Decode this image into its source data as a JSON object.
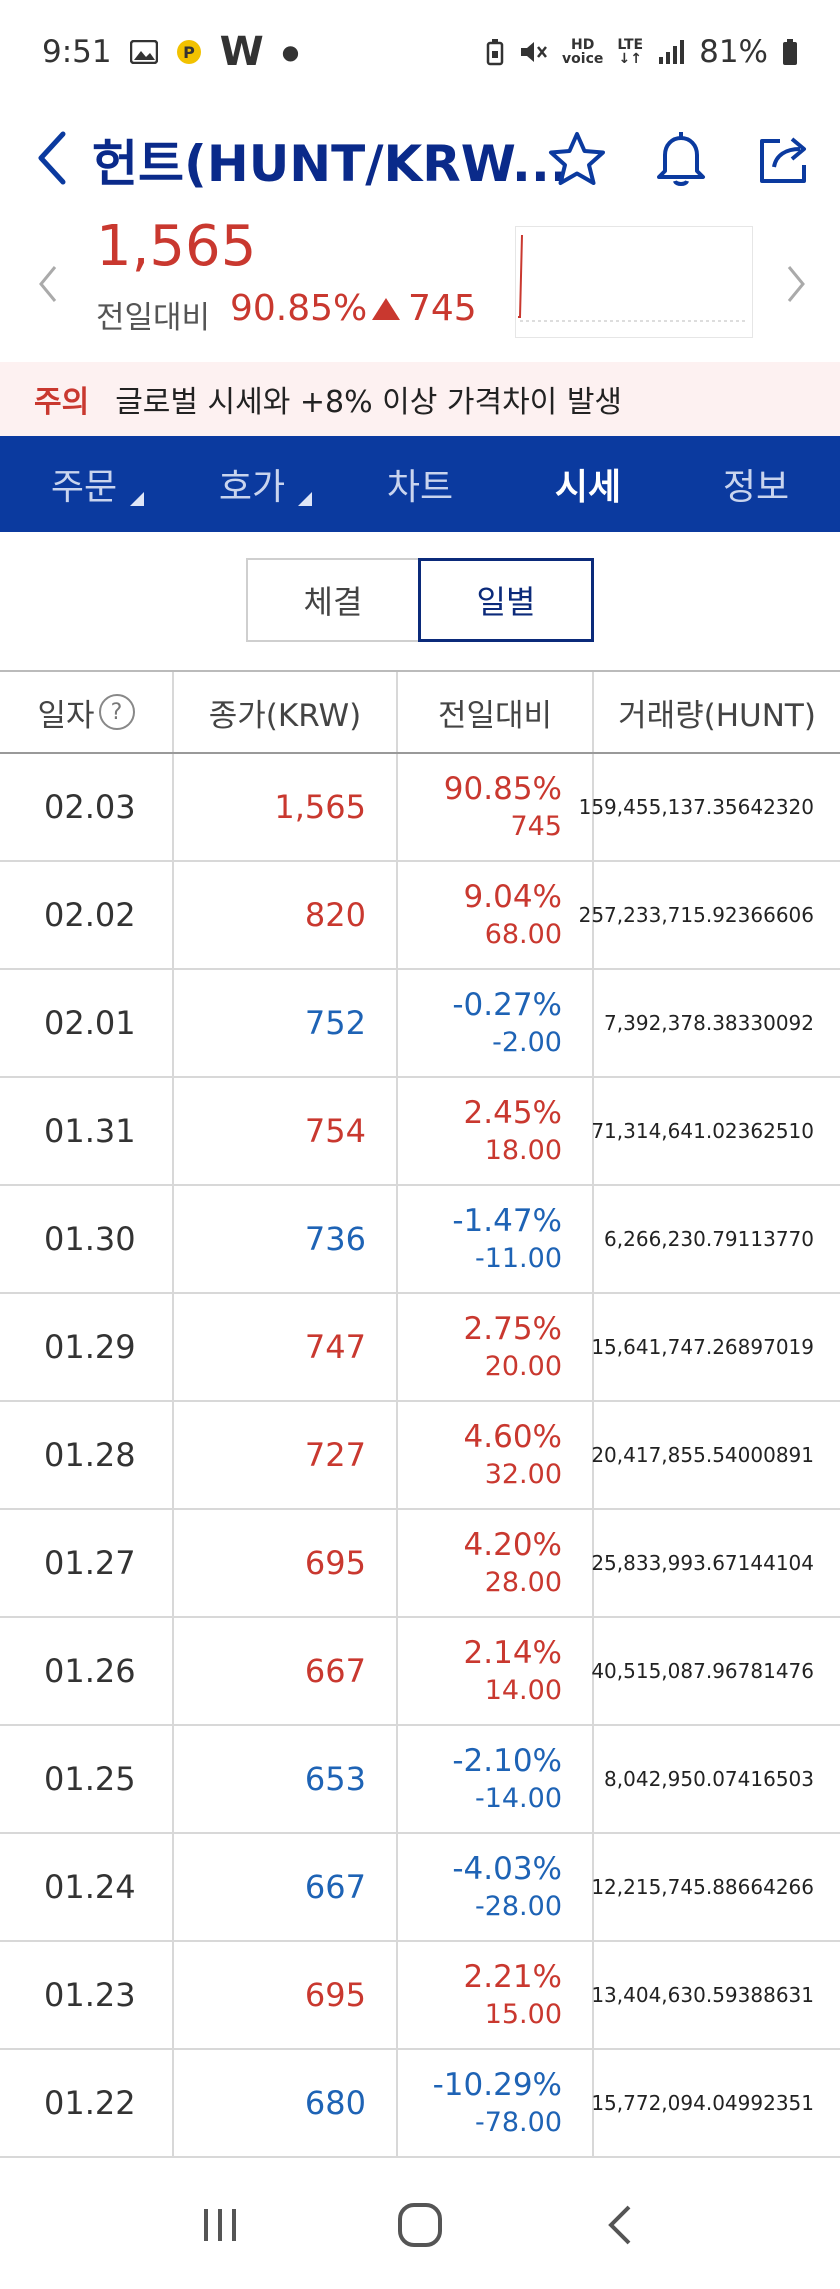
{
  "status": {
    "time": "9:51",
    "battery": "81%"
  },
  "header": {
    "title": "헌트(HUNT/KRW..."
  },
  "summary": {
    "price": "1,565",
    "prev_label": "전일대비",
    "change_rate": "90.85%",
    "change_abs": "745"
  },
  "warning": {
    "label": "주의",
    "text": "글로벌 시세와 +8% 이상 가격차이 발생"
  },
  "tabs": [
    {
      "label": "주문",
      "active": false
    },
    {
      "label": "호가",
      "active": false
    },
    {
      "label": "차트",
      "active": false
    },
    {
      "label": "시세",
      "active": true
    },
    {
      "label": "정보",
      "active": false
    }
  ],
  "segment": {
    "trades": "체결",
    "daily": "일별"
  },
  "table": {
    "headers": [
      "일자",
      "종가(KRW)",
      "전일대비",
      "거래량(HUNT)"
    ],
    "rows": [
      {
        "date": "02.03",
        "close": "1,565",
        "rate": "90.85%",
        "abs": "745",
        "volume": "159,455,137.35642320",
        "dir": "up"
      },
      {
        "date": "02.02",
        "close": "820",
        "rate": "9.04%",
        "abs": "68.00",
        "volume": "257,233,715.92366606",
        "dir": "up"
      },
      {
        "date": "02.01",
        "close": "752",
        "rate": "-0.27%",
        "abs": "-2.00",
        "volume": "7,392,378.38330092",
        "dir": "down"
      },
      {
        "date": "01.31",
        "close": "754",
        "rate": "2.45%",
        "abs": "18.00",
        "volume": "71,314,641.02362510",
        "dir": "up"
      },
      {
        "date": "01.30",
        "close": "736",
        "rate": "-1.47%",
        "abs": "-11.00",
        "volume": "6,266,230.79113770",
        "dir": "down"
      },
      {
        "date": "01.29",
        "close": "747",
        "rate": "2.75%",
        "abs": "20.00",
        "volume": "15,641,747.26897019",
        "dir": "up"
      },
      {
        "date": "01.28",
        "close": "727",
        "rate": "4.60%",
        "abs": "32.00",
        "volume": "20,417,855.54000891",
        "dir": "up"
      },
      {
        "date": "01.27",
        "close": "695",
        "rate": "4.20%",
        "abs": "28.00",
        "volume": "25,833,993.67144104",
        "dir": "up"
      },
      {
        "date": "01.26",
        "close": "667",
        "rate": "2.14%",
        "abs": "14.00",
        "volume": "40,515,087.96781476",
        "dir": "up"
      },
      {
        "date": "01.25",
        "close": "653",
        "rate": "-2.10%",
        "abs": "-14.00",
        "volume": "8,042,950.07416503",
        "dir": "down"
      },
      {
        "date": "01.24",
        "close": "667",
        "rate": "-4.03%",
        "abs": "-28.00",
        "volume": "12,215,745.88664266",
        "dir": "down"
      },
      {
        "date": "01.23",
        "close": "695",
        "rate": "2.21%",
        "abs": "15.00",
        "volume": "13,404,630.59388631",
        "dir": "up"
      },
      {
        "date": "01.22",
        "close": "680",
        "rate": "-10.29%",
        "abs": "-78.00",
        "volume": "15,772,094.04992351",
        "dir": "down"
      }
    ]
  },
  "colors": {
    "up": "#c9382f",
    "down": "#1e63b5",
    "brand": "#0b3a9f"
  }
}
